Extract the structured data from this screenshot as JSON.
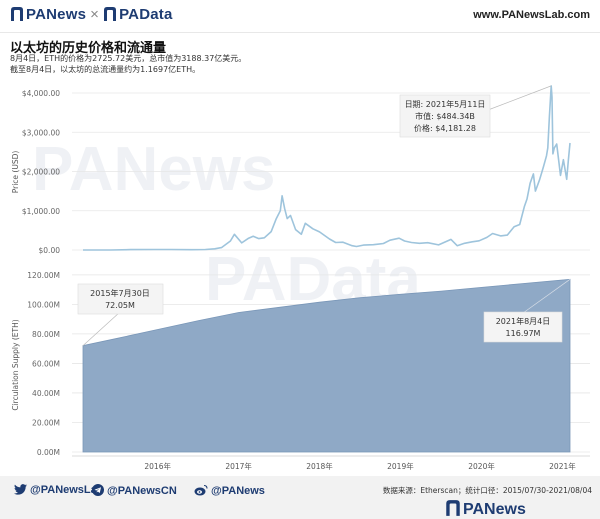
{
  "header": {
    "brand_left": "PANews",
    "brand_sep": "×",
    "brand_right": "PAData",
    "site": "www.PANewsLab.com"
  },
  "title": "以太坊的历史价格和流通量",
  "subtitle_line1": "8月4日，ETH的价格为2725.72美元，总市值为3188.37亿美元。",
  "subtitle_line2": "截至8月4日，以太坊的总流通量约为1.1697亿ETH。",
  "watermarks": [
    "PANews",
    "PAData"
  ],
  "chart_data": [
    {
      "type": "line",
      "ylabel": "Price (USD)",
      "y_ticks": [
        "$0.00",
        "$1,000.00",
        "$2,000.00",
        "$3,000.00",
        "$4,000.00"
      ],
      "ylim": [
        0,
        4300
      ],
      "color": "#9ec4dc",
      "series": [
        {
          "x": [
            "2015-07-30",
            "2015-12-01",
            "2016-03-01",
            "2016-06-15",
            "2016-09-01",
            "2016-12-01",
            "2017-02-01",
            "2017-03-15",
            "2017-04-15",
            "2017-05-25",
            "2017-06-12",
            "2017-07-15",
            "2017-08-15",
            "2017-09-05",
            "2017-09-30",
            "2017-10-25",
            "2017-11-25",
            "2017-12-18",
            "2018-01-05",
            "2018-01-13",
            "2018-01-25",
            "2018-02-05",
            "2018-02-20",
            "2018-03-15",
            "2018-04-10",
            "2018-04-28",
            "2018-06-01",
            "2018-07-01",
            "2018-08-15",
            "2018-09-12",
            "2018-10-15",
            "2018-11-25",
            "2018-12-15",
            "2019-01-15",
            "2019-03-01",
            "2019-04-15",
            "2019-05-15",
            "2019-06-25",
            "2019-07-20",
            "2019-08-20",
            "2019-09-25",
            "2019-11-01",
            "2019-12-20",
            "2020-02-14",
            "2020-03-13",
            "2020-04-15",
            "2020-05-20",
            "2020-06-20",
            "2020-07-25",
            "2020-08-20",
            "2020-09-25",
            "2020-10-25",
            "2020-11-25",
            "2020-12-20",
            "2021-01-10",
            "2021-01-22",
            "2021-02-05",
            "2021-02-20",
            "2021-03-01",
            "2021-03-20",
            "2021-04-05",
            "2021-04-20",
            "2021-04-26",
            "2021-05-03",
            "2021-05-11",
            "2021-05-15",
            "2021-05-19",
            "2021-05-25",
            "2021-06-05",
            "2021-06-22",
            "2021-07-05",
            "2021-07-20",
            "2021-07-28",
            "2021-08-04"
          ],
          "y": [
            1,
            1,
            10,
            14,
            12,
            8,
            12,
            30,
            60,
            230,
            400,
            180,
            300,
            350,
            290,
            310,
            470,
            800,
            1000,
            1380,
            1050,
            800,
            880,
            520,
            400,
            680,
            540,
            460,
            280,
            190,
            200,
            110,
            90,
            125,
            135,
            165,
            250,
            300,
            230,
            190,
            170,
            185,
            130,
            270,
            110,
            170,
            210,
            235,
            320,
            420,
            360,
            380,
            590,
            650,
            1100,
            1300,
            1700,
            1940,
            1500,
            1790,
            2100,
            2400,
            2600,
            3400,
            4181.28,
            3900,
            2450,
            2600,
            2700,
            1900,
            2300,
            1800,
            2300,
            2725.72
          ]
        }
      ],
      "annotation": {
        "lines": [
          "日期: 2021年5月11日",
          "市值: $484.34B",
          "价格: $4,181.28"
        ]
      }
    },
    {
      "type": "area",
      "ylabel": "Circulation Supply (ETH)",
      "y_ticks": [
        "0.00M",
        "20.00M",
        "40.00M",
        "60.00M",
        "80.00M",
        "100.00M",
        "120.00M"
      ],
      "ylim": [
        0,
        126
      ],
      "color": "#8fa9c6",
      "x_ticks": [
        "2016年",
        "2017年",
        "2018年",
        "2019年",
        "2020年",
        "2021年"
      ],
      "series": [
        {
          "x": [
            "2015-07-30",
            "2016-01-01",
            "2016-07-01",
            "2017-01-01",
            "2017-07-01",
            "2018-01-01",
            "2018-07-01",
            "2019-01-01",
            "2019-07-01",
            "2020-01-01",
            "2020-07-01",
            "2021-01-01",
            "2021-08-04"
          ],
          "y": [
            72.05,
            77.0,
            83.0,
            89.0,
            94.5,
            98.0,
            101.5,
            104.5,
            106.8,
            109.0,
            111.5,
            114.1,
            116.97
          ]
        }
      ],
      "annotations": [
        {
          "lines": [
            "2015年7月30日",
            "72.05M"
          ]
        },
        {
          "lines": [
            "2021年8月4日",
            "116.97M"
          ]
        }
      ]
    }
  ],
  "footer": {
    "twitter": "@PANewsLab",
    "telegram": "@PANewsCN",
    "weibo": "@PANews",
    "source": "数据来源：Etherscan；统计口径：2015/07/30-2021/08/04",
    "logo": "PANews"
  },
  "colors": {
    "brand": "#1e3c72",
    "price_line": "#9ec4dc",
    "supply_area": "#8fa9c6"
  }
}
